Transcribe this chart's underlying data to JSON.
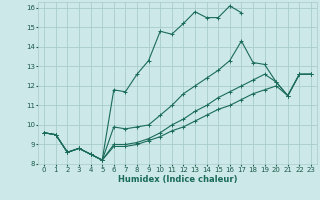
{
  "xlabel": "Humidex (Indice chaleur)",
  "bg_color": "#cce8e8",
  "grid_color": "#aacccc",
  "line_color": "#1a6b5a",
  "xlim": [
    -0.5,
    23.5
  ],
  "ylim": [
    8,
    16.3
  ],
  "xticks": [
    0,
    1,
    2,
    3,
    4,
    5,
    6,
    7,
    8,
    9,
    10,
    11,
    12,
    13,
    14,
    15,
    16,
    17,
    18,
    19,
    20,
    21,
    22,
    23
  ],
  "yticks": [
    8,
    9,
    10,
    11,
    12,
    13,
    14,
    15,
    16
  ],
  "lines": [
    {
      "x": [
        0,
        1,
        2,
        3,
        4,
        5,
        6,
        7,
        8,
        9,
        10,
        11,
        12,
        13,
        14,
        15,
        16,
        17
      ],
      "y": [
        9.6,
        9.5,
        8.6,
        8.8,
        8.5,
        8.2,
        11.8,
        11.7,
        12.6,
        13.3,
        14.8,
        14.65,
        15.2,
        15.8,
        15.5,
        15.5,
        16.1,
        15.75
      ]
    },
    {
      "x": [
        0,
        1,
        2,
        3,
        4,
        5,
        6,
        7,
        8,
        9,
        10,
        11,
        12,
        13,
        14,
        15,
        16,
        17,
        18,
        19,
        20,
        21,
        22,
        23
      ],
      "y": [
        9.6,
        9.5,
        8.6,
        8.8,
        8.5,
        8.2,
        9.9,
        9.8,
        9.9,
        10.0,
        10.5,
        11.0,
        11.6,
        12.0,
        12.4,
        12.8,
        13.3,
        14.3,
        13.2,
        13.1,
        12.2,
        11.5,
        12.6,
        12.6
      ]
    },
    {
      "x": [
        0,
        1,
        2,
        3,
        4,
        5,
        6,
        7,
        8,
        9,
        10,
        11,
        12,
        13,
        14,
        15,
        16,
        17,
        18,
        19,
        20,
        21,
        22,
        23
      ],
      "y": [
        9.6,
        9.5,
        8.6,
        8.8,
        8.5,
        8.2,
        9.0,
        9.0,
        9.1,
        9.3,
        9.6,
        10.0,
        10.3,
        10.7,
        11.0,
        11.4,
        11.7,
        12.0,
        12.3,
        12.6,
        12.2,
        11.5,
        12.6,
        12.6
      ]
    },
    {
      "x": [
        0,
        1,
        2,
        3,
        4,
        5,
        6,
        7,
        8,
        9,
        10,
        11,
        12,
        13,
        14,
        15,
        16,
        17,
        18,
        19,
        20,
        21,
        22,
        23
      ],
      "y": [
        9.6,
        9.5,
        8.6,
        8.8,
        8.5,
        8.2,
        8.9,
        8.9,
        9.0,
        9.2,
        9.4,
        9.7,
        9.9,
        10.2,
        10.5,
        10.8,
        11.0,
        11.3,
        11.6,
        11.8,
        12.0,
        11.5,
        12.6,
        12.6
      ]
    }
  ]
}
